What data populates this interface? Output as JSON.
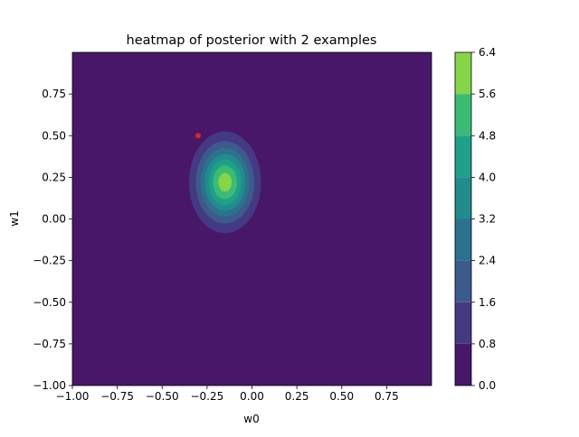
{
  "chart_data": {
    "type": "heatmap",
    "subtype": "filled-contour",
    "title": "heatmap of posterior with 2 examples",
    "xlabel": "w0",
    "ylabel": "w1",
    "xlim": [
      -1.0,
      1.0
    ],
    "ylim": [
      -1.0,
      1.0
    ],
    "x_ticks": [
      "−1.00",
      "−0.75",
      "−0.50",
      "−0.25",
      "0.00",
      "0.25",
      "0.50",
      "0.75"
    ],
    "y_ticks": [
      "−1.00",
      "−0.75",
      "−0.50",
      "−0.25",
      "0.00",
      "0.25",
      "0.50",
      "0.75"
    ],
    "grid": false,
    "colormap": "viridis",
    "contour_levels": [
      0.0,
      0.8,
      1.6,
      2.4,
      3.2,
      4.0,
      4.8,
      5.6,
      6.4
    ],
    "level_colors": [
      "#481769",
      "#443a83",
      "#3c5b8b",
      "#2c728e",
      "#228c8d",
      "#1fa088",
      "#3bbb75",
      "#86d549",
      "#d2e21b"
    ],
    "colorbar_ticks": [
      "0.0",
      "0.8",
      "1.6",
      "2.4",
      "3.2",
      "4.0",
      "4.8",
      "5.6",
      "6.4"
    ],
    "distribution": {
      "mean_w0": -0.15,
      "mean_w1": 0.22,
      "std_w0": 0.1,
      "std_w1": 0.152,
      "peak_density": 6.0
    },
    "markers": [
      {
        "w0": -0.3,
        "w1": 0.5,
        "color": "#d62728"
      }
    ]
  }
}
